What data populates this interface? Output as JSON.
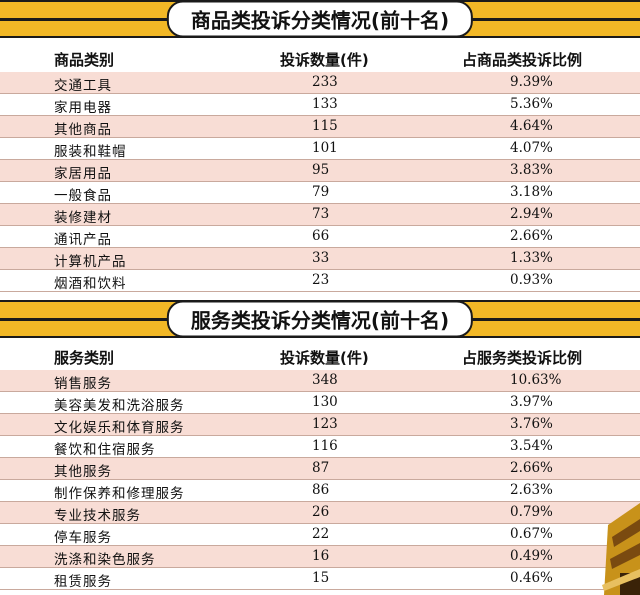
{
  "goods": {
    "title": "商品类投诉分类情况(前十名)",
    "headers": [
      "商品类别",
      "投诉数量(件)",
      "占商品类投诉比例"
    ],
    "rows": [
      {
        "cat": "交通工具",
        "count": "233",
        "pct": "9.39%"
      },
      {
        "cat": "家用电器",
        "count": "133",
        "pct": "5.36%"
      },
      {
        "cat": "其他商品",
        "count": "115",
        "pct": "4.64%"
      },
      {
        "cat": "服装和鞋帽",
        "count": "101",
        "pct": "4.07%"
      },
      {
        "cat": "家居用品",
        "count": "95",
        "pct": "3.83%"
      },
      {
        "cat": "一般食品",
        "count": "79",
        "pct": "3.18%"
      },
      {
        "cat": "装修建材",
        "count": "73",
        "pct": "2.94%"
      },
      {
        "cat": "通讯产品",
        "count": "66",
        "pct": "2.66%"
      },
      {
        "cat": "计算机产品",
        "count": "33",
        "pct": "1.33%"
      },
      {
        "cat": "烟酒和饮料",
        "count": "23",
        "pct": "0.93%"
      }
    ]
  },
  "services": {
    "title": "服务类投诉分类情况(前十名)",
    "headers": [
      "服务类别",
      "投诉数量(件)",
      "占服务类投诉比例"
    ],
    "rows": [
      {
        "cat": "销售服务",
        "count": "348",
        "pct": "10.63%"
      },
      {
        "cat": "美容美发和洗浴服务",
        "count": "130",
        "pct": "3.97%"
      },
      {
        "cat": "文化娱乐和体育服务",
        "count": "123",
        "pct": "3.76%"
      },
      {
        "cat": "餐饮和住宿服务",
        "count": "116",
        "pct": "3.54%"
      },
      {
        "cat": "其他服务",
        "count": "87",
        "pct": "2.66%"
      },
      {
        "cat": "制作保养和修理服务",
        "count": "86",
        "pct": "2.63%"
      },
      {
        "cat": "专业技术服务",
        "count": "26",
        "pct": "0.79%"
      },
      {
        "cat": "停车服务",
        "count": "22",
        "pct": "0.67%"
      },
      {
        "cat": "洗涤和染色服务",
        "count": "16",
        "pct": "0.49%"
      },
      {
        "cat": "租赁服务",
        "count": "15",
        "pct": "0.46%"
      }
    ]
  },
  "colors": {
    "banner": "#f2b826",
    "row_tint": "#f8ddd5"
  }
}
